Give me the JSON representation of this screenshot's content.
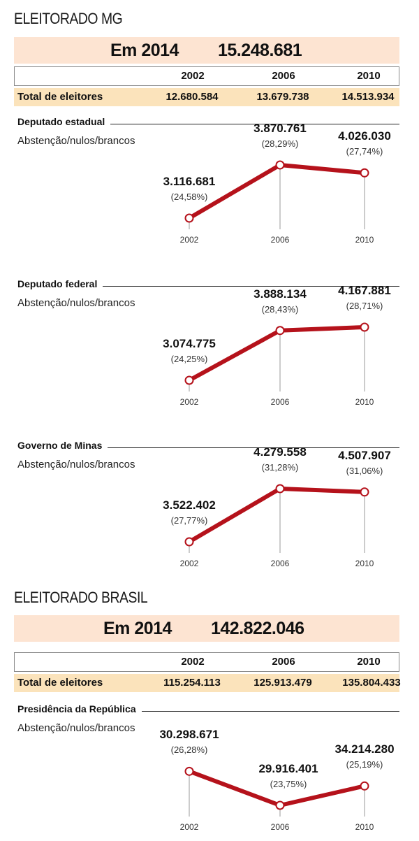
{
  "colors": {
    "line": "#b5121b",
    "banner": "#fde4d2",
    "total_row": "#fbe3bb",
    "guide": "#9a9a9a"
  },
  "mg": {
    "title": "ELEITORADO MG",
    "banner_label": "Em 2014",
    "banner_value": "15.248.681",
    "years": [
      "2002",
      "2006",
      "2010"
    ],
    "total_label": "Total de eleitores",
    "totals": [
      "12.680.584",
      "13.679.738",
      "14.513.934"
    ]
  },
  "brasil": {
    "title": "ELEITORADO BRASIL",
    "banner_label": "Em 2014",
    "banner_value": "142.822.046",
    "years": [
      "2002",
      "2006",
      "2010"
    ],
    "total_label": "Total de eleitores",
    "totals": [
      "115.254.113",
      "125.913.479",
      "135.804.433"
    ]
  },
  "chart_data": [
    {
      "type": "line",
      "title": "Deputado estadual",
      "subtitle": "Abstenção/nulos/brancos",
      "categories": [
        "2002",
        "2006",
        "2010"
      ],
      "values": [
        3116681,
        3870761,
        4026030
      ],
      "value_labels": [
        "3.116.681",
        "3.870.761",
        "4.026.030"
      ],
      "percents": [
        24.58,
        28.29,
        27.74
      ],
      "percent_labels": [
        "(24,58%)",
        "(28,29%)",
        "(27,74%)"
      ],
      "ylim": [
        24.58,
        28.29
      ]
    },
    {
      "type": "line",
      "title": "Deputado federal",
      "subtitle": "Abstenção/nulos/brancos",
      "categories": [
        "2002",
        "2006",
        "2010"
      ],
      "values": [
        3074775,
        3888134,
        4167881
      ],
      "value_labels": [
        "3.074.775",
        "3.888.134",
        "4.167.881"
      ],
      "percents": [
        24.25,
        28.43,
        28.71
      ],
      "percent_labels": [
        "(24,25%)",
        "(28,43%)",
        "(28,71%)"
      ],
      "ylim": [
        24.25,
        28.71
      ]
    },
    {
      "type": "line",
      "title": "Governo de Minas",
      "subtitle": "Abstenção/nulos/brancos",
      "categories": [
        "2002",
        "2006",
        "2010"
      ],
      "values": [
        3522402,
        4279558,
        4507907
      ],
      "value_labels": [
        "3.522.402",
        "4.279.558",
        "4.507.907"
      ],
      "percents": [
        27.77,
        31.28,
        31.06
      ],
      "percent_labels": [
        "(27,77%)",
        "(31,28%)",
        "(31,06%)"
      ],
      "ylim": [
        27.77,
        31.28
      ]
    },
    {
      "type": "line",
      "title": "Presidência da República",
      "subtitle": "Abstenção/nulos/brancos",
      "categories": [
        "2002",
        "2006",
        "2010"
      ],
      "values": [
        30298671,
        29916401,
        34214280
      ],
      "value_labels": [
        "30.298.671",
        "29.916.401",
        "34.214.280"
      ],
      "percents": [
        26.28,
        23.75,
        25.19
      ],
      "percent_labels": [
        "(26,28%)",
        "(23,75%)",
        "(25,19%)"
      ],
      "ylim": [
        23.75,
        27.7
      ]
    }
  ]
}
